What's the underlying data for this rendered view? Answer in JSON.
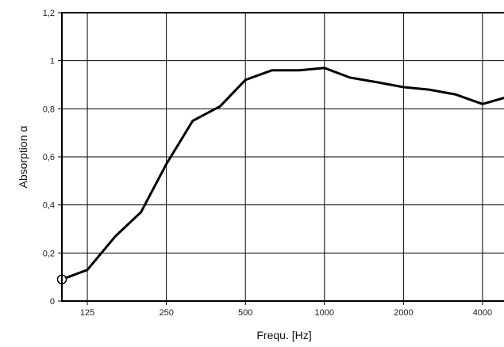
{
  "chart_data": {
    "type": "line",
    "xlabel": "Frequ. [Hz]",
    "ylabel": "Absorption α",
    "x_scale": "log2",
    "xlim": [
      100,
      5000
    ],
    "ylim": [
      0,
      1.2
    ],
    "x_ticks": [
      "125",
      "250",
      "500",
      "1000",
      "2000",
      "4000"
    ],
    "y_ticks": [
      "0",
      "0,2",
      "0,4",
      "0,6",
      "0,8",
      "1",
      "1,2"
    ],
    "grid": true,
    "series": [
      {
        "x": [
          100,
          125,
          160,
          200,
          250,
          315,
          400,
          500,
          630,
          800,
          1000,
          1250,
          1600,
          2000,
          2500,
          3150,
          4000,
          5000
        ],
        "y": [
          0.09,
          0.13,
          0.27,
          0.37,
          0.57,
          0.75,
          0.81,
          0.92,
          0.96,
          0.96,
          0.97,
          0.93,
          0.91,
          0.89,
          0.88,
          0.86,
          0.82,
          0.85
        ],
        "color": "#000000"
      }
    ]
  }
}
